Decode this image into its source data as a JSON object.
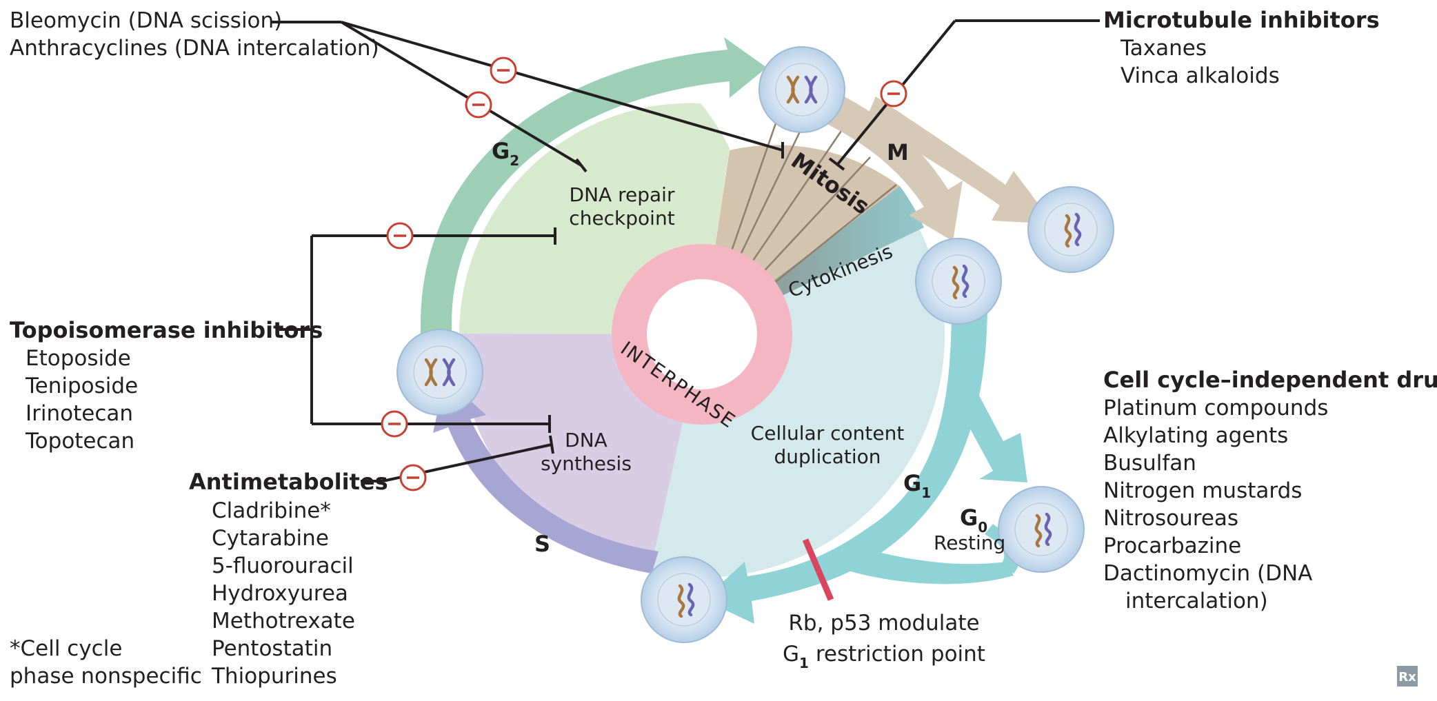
{
  "phases": {
    "g2": "G",
    "g2_sub": "2",
    "m": "M",
    "g1": "G",
    "g1_sub": "1",
    "s": "S",
    "g0": "G",
    "g0_sub": "0",
    "g0_resting": "Resting"
  },
  "sectors": {
    "mitosis": "Mitosis",
    "cytokinesis": "Cytokinesis",
    "interphase": "INTERPHASE",
    "dna_repair_1": "DNA repair",
    "dna_repair_2": "checkpoint",
    "dna_synthesis_1": "DNA",
    "dna_synthesis_2": "synthesis",
    "cellular_1": "Cellular content",
    "cellular_2": "duplication"
  },
  "restriction": {
    "line1": "Rb, p53 modulate",
    "line2_a": "G",
    "line2_sub": "1",
    "line2_b": " restriction point"
  },
  "drugs": {
    "dna_damage": [
      "Bleomycin (DNA scission)",
      "Anthracyclines (DNA intercalation)"
    ],
    "microtubule": {
      "title": "Microtubule inhibitors",
      "items": [
        "Taxanes",
        "Vinca alkaloids"
      ]
    },
    "topoisomerase": {
      "title": "Topoisomerase inhibitors",
      "items": [
        "Etoposide",
        "Teniposide",
        "Irinotecan",
        "Topotecan"
      ]
    },
    "antimetabolites": {
      "title": "Antimetabolites",
      "items": [
        "Cladribine*",
        "Cytarabine",
        "5-fluorouracil",
        "Hydroxyurea",
        "Methotrexate",
        "Pentostatin",
        "Thiopurines"
      ]
    },
    "independent": {
      "title": "Cell cycle–independent drugs",
      "items": [
        "Platinum compounds",
        "Alkylating agents",
        "Busulfan",
        "Nitrogen mustards",
        "Nitrosoureas",
        "Procarbazine",
        "Dactinomycin (DNA",
        "intercalation)"
      ]
    }
  },
  "footnote": [
    "*Cell cycle",
    "phase nonspecific"
  ],
  "rx_badge": "Rx",
  "colors": {
    "g2_arrow": "#9ccfb6",
    "g1_arrow": "#8fd3d6",
    "s_arrow": "#a7a6d3",
    "m_arrow": "#d6c9b6",
    "g2_sector": "#d8eacd",
    "s_sector": "#d9cde6",
    "g1_sector": "#d3e9ec",
    "mitosis_sector": "#d3c3af",
    "interphase_ring": "#f4b6c2",
    "inhibit_marker": "#c8402f",
    "restriction_bar": "#d9455f",
    "cell_fill": "#c9dcef"
  }
}
